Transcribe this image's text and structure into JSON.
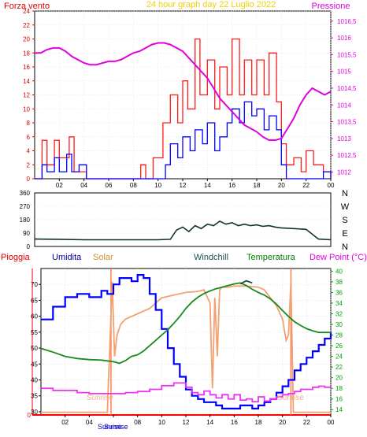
{
  "header": {
    "left_label": "Forza vento",
    "title": "24 hour graph day   22 Luglio 2022",
    "right_label": "Pressione"
  },
  "colors": {
    "frame_bg": "#ffffff",
    "plot_bg": "#ffffff",
    "axis": "#000000",
    "grid": "#d8d8d8",
    "title": "#f0d000",
    "wind_axis": "#e00000",
    "press_axis": "#d800d8",
    "gust": "#ff1a1a",
    "avg_wind": "#0000ff",
    "pressure": "#e000e0",
    "direction": "#103030",
    "humidity": "#0000ff",
    "solar": "#f4a070",
    "windchill": "#1a5030",
    "temperature": "#1a8a1a",
    "dewpoint": "#ee33ee",
    "rain": "#ff0000",
    "temp_axis": "#00a000",
    "sunrise_line": "#ff7f50"
  },
  "chart_data": [
    {
      "type": "line",
      "name": "wind-pressure",
      "x_ticks": [
        "02",
        "04",
        "06",
        "08",
        "10",
        "12",
        "14",
        "16",
        "18",
        "20",
        "22",
        "00"
      ],
      "x_range_hours": [
        0,
        24
      ],
      "y_left_ticks": [
        "0",
        "2",
        "4",
        "6",
        "8",
        "10",
        "12",
        "14",
        "16",
        "18",
        "20",
        "22",
        "24"
      ],
      "y_left_range": [
        0,
        24
      ],
      "y_right_ticks": [
        "1012",
        "1012,5",
        "1013",
        "1013,5",
        "1014",
        "1014,5",
        "1015",
        "1015,5",
        "1016",
        "1016,5"
      ],
      "y_right_range": [
        1011.8,
        1016.8
      ],
      "series": [
        {
          "key": "gust",
          "axis": "left",
          "x": [
            0,
            0.6,
            1.0,
            1.6,
            2.0,
            2.8,
            3.2,
            4.2,
            5.0,
            6.0,
            7.0,
            8.0,
            8.6,
            9.0,
            9.6,
            10.0,
            10.4,
            11.0,
            11.6,
            12.0,
            12.4,
            13.0,
            13.4,
            14.0,
            14.6,
            15.0,
            15.6,
            16.0,
            16.6,
            17.0,
            17.6,
            18.0,
            18.6,
            19.0,
            19.6,
            20.0,
            20.4,
            21.0,
            21.6,
            22.0,
            22.6,
            23.0,
            23.4,
            24.0
          ],
          "values": [
            0,
            5.5,
            2,
            5.5,
            3,
            6,
            1,
            0,
            0,
            0,
            0,
            0,
            2,
            0,
            3,
            3,
            8,
            12,
            8,
            14,
            10,
            20,
            12,
            17,
            10,
            16,
            12,
            20,
            12,
            17,
            12,
            17,
            12,
            18,
            11,
            5,
            2,
            3,
            1,
            4,
            2,
            2,
            1,
            0
          ]
        },
        {
          "key": "avg_wind",
          "axis": "left",
          "x": [
            0,
            0.6,
            1.0,
            1.6,
            2.0,
            2.6,
            3.0,
            3.6,
            4.2,
            5.0,
            6.0,
            7.0,
            8.0,
            9.0,
            10.0,
            10.6,
            11.0,
            11.6,
            12.0,
            12.6,
            13.0,
            13.6,
            14.0,
            14.6,
            15.0,
            15.6,
            16.0,
            16.6,
            17.0,
            17.6,
            18.0,
            18.6,
            19.0,
            19.6,
            20.0,
            20.4,
            21.0,
            22.0,
            23.0,
            23.4,
            24.0
          ],
          "values": [
            0,
            2,
            1,
            3,
            1,
            3.5,
            1,
            2,
            0,
            0,
            0,
            0,
            0,
            0,
            0,
            2,
            5,
            3,
            6,
            4,
            7,
            5,
            8,
            4,
            6,
            8,
            10,
            8,
            11,
            9,
            10,
            7,
            9,
            7,
            2,
            0,
            0,
            0,
            0,
            1,
            0
          ]
        },
        {
          "key": "pressure",
          "axis": "right",
          "x": [
            0,
            0.5,
            1,
            1.5,
            2,
            2.5,
            3,
            3.5,
            4,
            4.5,
            5,
            5.5,
            6,
            6.5,
            7,
            7.5,
            8,
            8.5,
            9,
            9.5,
            10,
            10.5,
            11,
            11.5,
            12,
            12.5,
            13,
            13.5,
            14,
            14.5,
            15,
            15.5,
            16,
            16.5,
            17,
            17.5,
            18,
            18.5,
            19,
            19.5,
            20,
            20.5,
            21,
            21.5,
            22,
            22.5,
            23,
            23.5,
            24
          ],
          "values": [
            1015.55,
            1015.55,
            1015.65,
            1015.7,
            1015.7,
            1015.6,
            1015.45,
            1015.35,
            1015.25,
            1015.2,
            1015.2,
            1015.25,
            1015.3,
            1015.3,
            1015.35,
            1015.45,
            1015.55,
            1015.6,
            1015.7,
            1015.8,
            1015.85,
            1015.85,
            1015.8,
            1015.7,
            1015.6,
            1015.4,
            1015.2,
            1015.0,
            1014.8,
            1014.5,
            1014.2,
            1014.0,
            1013.8,
            1013.6,
            1013.4,
            1013.3,
            1013.2,
            1013.05,
            1012.95,
            1012.95,
            1013.0,
            1013.3,
            1013.6,
            1014.0,
            1014.3,
            1014.5,
            1014.4,
            1014.3,
            1014.4
          ]
        }
      ]
    },
    {
      "type": "line",
      "name": "wind-direction",
      "x_range_hours": [
        0,
        24
      ],
      "y_ticks": [
        "0",
        "90",
        "180",
        "270",
        "360"
      ],
      "y_range": [
        0,
        360
      ],
      "right_labels": [
        "N",
        "W",
        "S",
        "E",
        "N"
      ],
      "series": [
        {
          "key": "direction",
          "x": [
            0,
            2,
            4,
            6,
            8,
            10,
            11,
            11.5,
            12,
            12.5,
            13,
            13.5,
            14,
            14.5,
            15,
            15.5,
            16,
            16.5,
            17,
            17.5,
            18,
            18.5,
            19,
            19.5,
            20,
            21,
            22,
            23,
            24
          ],
          "values": [
            50,
            48,
            45,
            45,
            45,
            45,
            48,
            110,
            130,
            100,
            140,
            120,
            150,
            140,
            170,
            150,
            160,
            140,
            150,
            140,
            145,
            135,
            140,
            130,
            125,
            120,
            115,
            50,
            45
          ]
        }
      ]
    },
    {
      "type": "line",
      "name": "temperature-humidity",
      "x_ticks": [
        "02",
        "04",
        "06",
        "08",
        "10",
        "12",
        "14",
        "16",
        "18",
        "20",
        "22",
        "00"
      ],
      "x_range_hours": [
        0,
        24
      ],
      "y_left_ticks": [
        "30",
        "35",
        "40",
        "45",
        "50",
        "55",
        "60",
        "65",
        "70"
      ],
      "y_left_range": [
        29,
        75
      ],
      "y_right_ticks": [
        "14",
        "16",
        "18",
        "20",
        "22",
        "24",
        "26",
        "28",
        "30",
        "32",
        "34",
        "36",
        "38",
        "40"
      ],
      "y_right_range": [
        13,
        40.5
      ],
      "legend": [
        "Pioggia",
        "Umidita",
        "Solar",
        "Windchill",
        "Temperatura",
        "Dew Point (°C)"
      ],
      "sun_labels": [
        "Sunrise",
        "Sunrise",
        "Sunrise",
        "Sunrise"
      ],
      "sun_hours": [
        5.8,
        20.7
      ],
      "series": [
        {
          "key": "humidity",
          "axis": "left",
          "x": [
            0,
            1,
            2,
            3,
            4,
            5,
            5.5,
            6,
            6.5,
            7,
            7.5,
            8,
            8.5,
            9,
            9.5,
            10,
            10.5,
            11,
            11.5,
            12,
            12.5,
            13,
            13.5,
            14,
            14.5,
            15,
            15.5,
            16,
            16.5,
            17,
            17.5,
            18,
            18.5,
            19,
            19.5,
            20,
            20.5,
            21,
            21.5,
            22,
            22.5,
            23,
            23.5,
            24
          ],
          "values": [
            59,
            63,
            66,
            67,
            66,
            68,
            67,
            70,
            72,
            72,
            71,
            73,
            72,
            67,
            62,
            56,
            50,
            45,
            41,
            37,
            35,
            34,
            33,
            33,
            32,
            31,
            31,
            31,
            32,
            32,
            31,
            32,
            33,
            34,
            36,
            38,
            40,
            43,
            45,
            47,
            49,
            51,
            53,
            55
          ]
        },
        {
          "key": "temperature",
          "axis": "right",
          "x": [
            0,
            1,
            2,
            3,
            4,
            5,
            6,
            6.5,
            7,
            7.5,
            8,
            8.5,
            9,
            9.5,
            10,
            10.5,
            11,
            11.5,
            12,
            12.5,
            13,
            13.5,
            14,
            14.5,
            15,
            15.5,
            16,
            16.5,
            17,
            17.5,
            18,
            18.5,
            19,
            19.5,
            20,
            20.5,
            21,
            21.5,
            22,
            22.5,
            23,
            23.5,
            24
          ],
          "values": [
            25.5,
            24.8,
            24.0,
            23.6,
            23.4,
            23.3,
            23.0,
            22.7,
            23.2,
            24.0,
            24.3,
            25.0,
            26.0,
            27.0,
            28.0,
            29.0,
            30.2,
            31.5,
            33.0,
            34.2,
            35.1,
            35.8,
            36.3,
            36.7,
            37.0,
            37.3,
            37.6,
            37.8,
            37.3,
            36.6,
            36.0,
            35.5,
            34.8,
            33.8,
            32.6,
            31.5,
            30.5,
            29.8,
            29.2,
            28.8,
            28.5,
            28.5,
            28.5
          ]
        },
        {
          "key": "windchill",
          "axis": "right",
          "x": [
            16.5,
            17,
            17.5
          ],
          "values": [
            37.6,
            38.2,
            37.8
          ]
        },
        {
          "key": "solar",
          "axis": "right",
          "x": [
            0,
            5.5,
            5.9,
            6.1,
            6.3,
            6.6,
            7,
            7.5,
            8,
            8.5,
            9,
            9.5,
            10,
            11,
            12,
            13,
            13.5,
            14,
            14.2,
            14.4,
            14.6,
            14.8,
            15,
            15.5,
            16,
            17,
            18,
            18.5,
            19,
            19.5,
            20,
            20.3,
            20.5,
            20.7,
            20.9,
            21.2,
            21.5,
            22,
            23,
            24
          ],
          "values": [
            13.5,
            13.5,
            38,
            24,
            28,
            30,
            31,
            31.5,
            32,
            32.5,
            33,
            34,
            35,
            35.5,
            36,
            36.2,
            36.5,
            34,
            18,
            35,
            24,
            36.5,
            37,
            37,
            37.2,
            37.2,
            37,
            36.5,
            35,
            33.5,
            31,
            27,
            28,
            38,
            13.5,
            13.5,
            13.5,
            13.5,
            13.5,
            13.5
          ]
        },
        {
          "key": "dewpoint",
          "axis": "right",
          "x": [
            0,
            1,
            2,
            3,
            4,
            5,
            6,
            7,
            8,
            9,
            10,
            11,
            12,
            12.5,
            13,
            13.5,
            14,
            14.5,
            15,
            15.5,
            16,
            16.5,
            17,
            17.5,
            18,
            18.5,
            19,
            19.5,
            20,
            20.5,
            21,
            21.5,
            22,
            22.5,
            23,
            23.5,
            24
          ],
          "values": [
            18,
            17.6,
            17.6,
            17.2,
            17.0,
            17.0,
            17.0,
            17.2,
            17.4,
            17.8,
            18.5,
            19.0,
            18.2,
            17.2,
            16.8,
            17.5,
            16.8,
            16.2,
            16.8,
            16.0,
            16.8,
            15.8,
            16.0,
            15.5,
            16.4,
            15.6,
            16.0,
            16.4,
            16.8,
            17.0,
            17.4,
            17.8,
            17.8,
            18.2,
            18.4,
            18.2,
            18.5
          ]
        }
      ]
    }
  ]
}
